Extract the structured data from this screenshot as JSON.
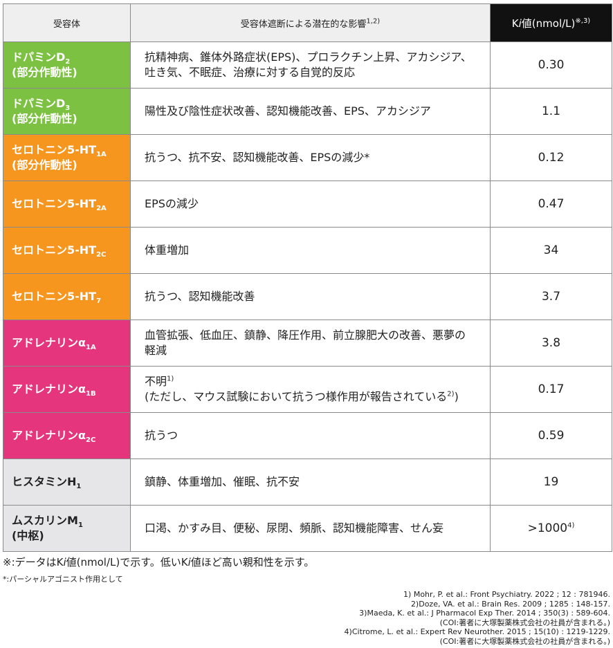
{
  "table": {
    "header": {
      "receptor": [
        "受容体"
      ],
      "effect": [
        "受容体遮断による潜在的な影響",
        {
          "sup": "1,2)"
        }
      ],
      "ki": [
        "K",
        {
          "i": "i"
        },
        "値(nmol/L)",
        {
          "sup": "※,3)"
        }
      ]
    },
    "rows": [
      {
        "color": "#7cc142",
        "receptor": [
          [
            "ドパミンD",
            {
              "sub": "2"
            }
          ],
          [
            "(部分作動性)"
          ]
        ],
        "effect": [
          [
            "抗精神病、錐体外路症状(EPS)、プロラクチン上昇、アカシジア、"
          ],
          [
            "吐き気、不眠症、治療に対する自覚的反応"
          ]
        ],
        "ki": [
          "0.30"
        ]
      },
      {
        "color": "#7cc142",
        "receptor": [
          [
            "ドパミンD",
            {
              "sub": "3"
            }
          ],
          [
            "(部分作動性)"
          ]
        ],
        "effect": [
          [
            "陽性及び陰性症状改善、認知機能改善、EPS、アカシジア"
          ]
        ],
        "ki": [
          "1.1"
        ]
      },
      {
        "color": "#f7961e",
        "receptor": [
          [
            "セロトニン5-HT",
            {
              "sub": "1A"
            }
          ],
          [
            "(部分作動性)"
          ]
        ],
        "effect": [
          [
            "抗うつ、抗不安、認知機能改善、EPSの減少*"
          ]
        ],
        "ki": [
          "0.12"
        ]
      },
      {
        "color": "#f7961e",
        "receptor": [
          [
            "セロトニン5-HT",
            {
              "sub": "2A"
            }
          ]
        ],
        "effect": [
          [
            "EPSの減少"
          ]
        ],
        "ki": [
          "0.47"
        ]
      },
      {
        "color": "#f7961e",
        "receptor": [
          [
            "セロトニン5-HT",
            {
              "sub": "2C"
            }
          ]
        ],
        "effect": [
          [
            "体重増加"
          ]
        ],
        "ki": [
          "34"
        ]
      },
      {
        "color": "#f7961e",
        "receptor": [
          [
            "セロトニン5-HT",
            {
              "sub": "7"
            }
          ]
        ],
        "effect": [
          [
            "抗うつ、認知機能改善"
          ]
        ],
        "ki": [
          "3.7"
        ]
      },
      {
        "color": "#e5357c",
        "receptor": [
          [
            "アドレナリンα",
            {
              "sub": "1A"
            }
          ]
        ],
        "effect": [
          [
            "血管拡張、低血圧、鎮静、降圧作用、前立腺肥大の改善、悪夢の"
          ],
          [
            "軽減"
          ]
        ],
        "ki": [
          "3.8"
        ]
      },
      {
        "color": "#e5357c",
        "receptor": [
          [
            "アドレナリンα",
            {
              "sub": "1B"
            }
          ]
        ],
        "effect": [
          [
            "不明",
            {
              "sup": "1)"
            }
          ],
          [
            "(ただし、マウス試験において抗うつ様作用が報告されている",
            {
              "sup": "2)"
            },
            ")"
          ]
        ],
        "ki": [
          "0.17"
        ]
      },
      {
        "color": "#e5357c",
        "receptor": [
          [
            "アドレナリンα",
            {
              "sub": "2C"
            }
          ]
        ],
        "effect": [
          [
            "抗うつ"
          ]
        ],
        "ki": [
          "0.59"
        ]
      },
      {
        "color": "#e6e6e8",
        "receptor": [
          [
            "ヒスタミンH",
            {
              "sub": "1"
            }
          ]
        ],
        "effect": [
          [
            "鎮静、体重増加、催眠、抗不安"
          ]
        ],
        "ki": [
          "19"
        ]
      },
      {
        "color": "#e6e6e8",
        "receptor": [
          [
            "ムスカリンM",
            {
              "sub": "1"
            }
          ],
          [
            "(中枢)"
          ]
        ],
        "effect": [
          [
            "口渇、かすみ目、便秘、尿閉、頻脈、認知機能障害、せん妄"
          ]
        ],
        "ki": [
          ">1000",
          {
            "sup": "4)"
          }
        ]
      }
    ]
  },
  "notes": {
    "main": [
      "※:データはK",
      {
        "i": "i"
      },
      "値(nmol/L)で示す。低いK",
      {
        "i": "i"
      },
      "値ほど高い親和性を示す。"
    ],
    "asterisk": "*:パーシャルアゴニスト作用として"
  },
  "references": [
    "1) Mohr, P. et al.: Front Psychiatry.  2022 ; 12 : 781946.",
    "2)Doze, VA. et al.: Brain Res.  2009 ; 1285 : 148-157.",
    "3)Maeda, K. et al.: J Pharmacol Exp Ther.  2014 ; 350(3) : 589-604.",
    "(COI:著者に大塚製薬株式会社の社員が含まれる。)",
    "4)Citrome, L. et al.: Expert Rev Neurother.  2015 ; 15(10) : 1219-1229.",
    "(COI:著者に大塚製薬株式会社の社員が含まれる。)"
  ]
}
